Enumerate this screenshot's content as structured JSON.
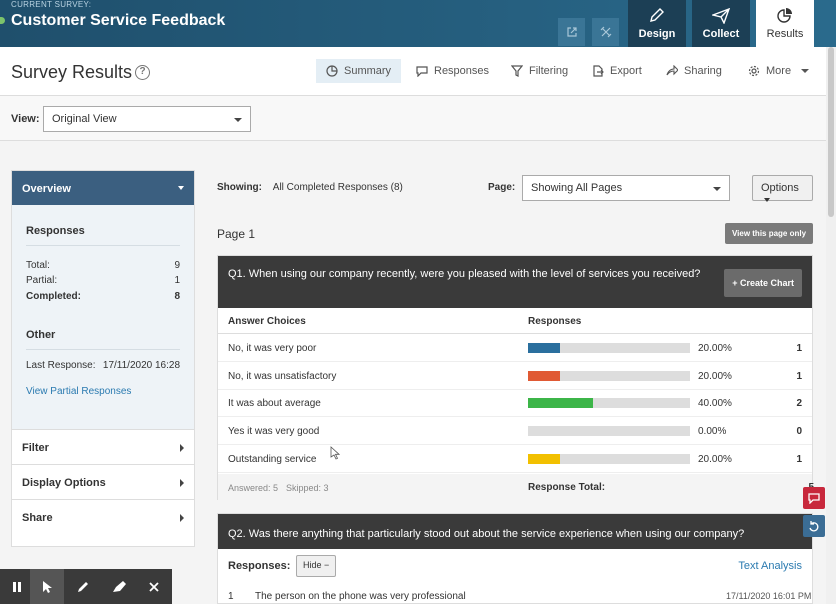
{
  "topbar": {
    "current_label": "CURRENT SURVEY:",
    "survey_title": "Customer Service Feedback",
    "nav": [
      {
        "label": "Design"
      },
      {
        "label": "Collect"
      },
      {
        "label": "Results"
      }
    ]
  },
  "header": {
    "title": "Survey Results",
    "tabs": [
      {
        "label": "Summary"
      },
      {
        "label": "Responses"
      },
      {
        "label": "Filtering"
      },
      {
        "label": "Export"
      },
      {
        "label": "Sharing"
      },
      {
        "label": "More"
      }
    ]
  },
  "view": {
    "label": "View:",
    "selected": "Original View"
  },
  "sidebar": {
    "overview": "Overview",
    "responses_heading": "Responses",
    "total_label": "Total:",
    "total_value": "9",
    "partial_label": "Partial:",
    "partial_value": "1",
    "completed_label": "Completed:",
    "completed_value": "8",
    "other_heading": "Other",
    "last_response_label": "Last Response:",
    "last_response_value": "17/11/2020 16:28",
    "view_partial_link": "View Partial Responses",
    "filter": "Filter",
    "display_options": "Display Options",
    "share": "Share"
  },
  "main": {
    "showing_label": "Showing:",
    "showing_value": "All Completed Responses (8)",
    "page_label": "Page:",
    "page_select": "Showing All Pages",
    "options_button": "Options",
    "page_title": "Page 1",
    "view_page_only": "View this page only"
  },
  "q1": {
    "question": "Q1. When using our company recently, were you pleased with the level of services you received?",
    "create_chart": "Create Chart",
    "col_choices": "Answer Choices",
    "col_responses": "Responses",
    "rows": [
      {
        "choice": "No, it was very poor",
        "percent": "20.00%",
        "count": "1",
        "fraction": 0.2,
        "color": "#2a6f9e"
      },
      {
        "choice": "No, it was unsatisfactory",
        "percent": "20.00%",
        "count": "1",
        "fraction": 0.2,
        "color": "#e05a34"
      },
      {
        "choice": "It was about average",
        "percent": "40.00%",
        "count": "2",
        "fraction": 0.4,
        "color": "#3cb548"
      },
      {
        "choice": "Yes it was very good",
        "percent": "0.00%",
        "count": "0",
        "fraction": 0.0,
        "color": "#8e44ad"
      },
      {
        "choice": "Outstanding service",
        "percent": "20.00%",
        "count": "1",
        "fraction": 0.2,
        "color": "#f2c000"
      }
    ],
    "answered": "Answered: 5",
    "skipped": "Skipped: 3",
    "response_total_label": "Response Total:",
    "response_total_value": "5"
  },
  "q2": {
    "question": "Q2. Was there anything that particularly stood out about the service experience when using our company?",
    "responses_label": "Responses:",
    "hide_button": "Hide",
    "text_analysis": "Text Analysis",
    "first_response": {
      "index": "1",
      "text": "The person on the phone was very professional",
      "date": "17/11/2020 16:01 PM"
    }
  }
}
